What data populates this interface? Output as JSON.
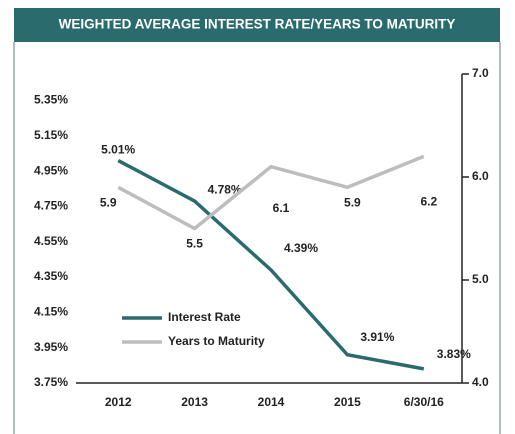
{
  "chart_data": {
    "type": "line",
    "title": "WEIGHTED AVERAGE INTEREST RATE/YEARS TO MATURITY",
    "categories": [
      "2012",
      "2013",
      "2014",
      "2015",
      "6/30/16"
    ],
    "series": [
      {
        "name": "Interest Rate",
        "color": "#2a6b6e",
        "values": [
          5.01,
          4.78,
          4.39,
          3.91,
          3.83
        ],
        "value_labels": [
          "5.01%",
          "4.78%",
          "4.39%",
          "3.91%",
          "3.83%"
        ]
      },
      {
        "name": "Years to Maturity",
        "color": "#bdbdbd",
        "axis": "y2",
        "values": [
          5.9,
          5.5,
          6.1,
          5.9,
          6.2
        ]
      }
    ],
    "ylim": [
      3.75,
      5.5
    ],
    "yticks": [
      {
        "value": 3.75,
        "label": "3.75%"
      },
      {
        "value": 3.95,
        "label": "3.95%"
      },
      {
        "value": 4.15,
        "label": "4.15%"
      },
      {
        "value": 4.35,
        "label": "4.35%"
      },
      {
        "value": 4.55,
        "label": "4.55%"
      },
      {
        "value": 4.75,
        "label": "4.75%"
      },
      {
        "value": 4.95,
        "label": "4.95%"
      },
      {
        "value": 5.15,
        "label": "5.15%"
      },
      {
        "value": 5.35,
        "label": "5.35%"
      }
    ],
    "y2lim": [
      4,
      7
    ],
    "y2ticks": [
      {
        "value": 4,
        "label": "4.0"
      },
      {
        "value": 5,
        "label": "5.0"
      },
      {
        "value": 6,
        "label": "6.0"
      },
      {
        "value": 7,
        "label": "7.0"
      }
    ]
  }
}
